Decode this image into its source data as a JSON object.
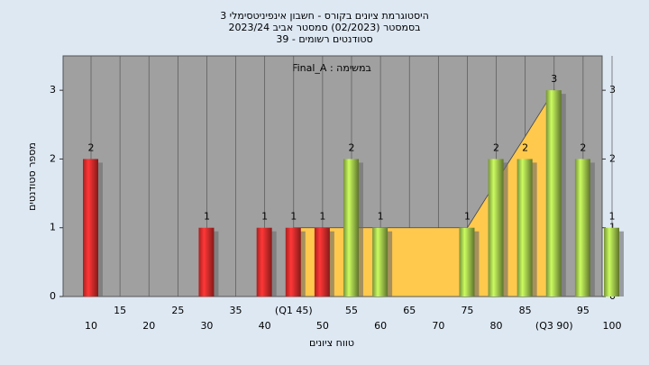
{
  "chart_data": {
    "type": "bar",
    "title": [
      "היסטוגרמת ציונים בקורס - חשבון אינפיניטסימלי 3",
      "בסמסטר  (02/2023)  סמסטר אביב 2023/24",
      "סטודנטים רשומים - 39"
    ],
    "annotation": "במשימה : Final_A",
    "x_label": "טווח ציונים",
    "y_label": "מספר סטודנטים",
    "categories": [
      "10",
      "15",
      "20",
      "25",
      "30",
      "35",
      "40",
      "(Q1 45)",
      "50",
      "55",
      "60",
      "65",
      "70",
      "75",
      "80",
      "85",
      "(Q3 90)",
      "95",
      "100"
    ],
    "values": [
      2,
      0,
      0,
      0,
      1,
      0,
      1,
      1,
      1,
      2,
      1,
      0,
      0,
      1,
      2,
      2,
      3,
      2,
      1
    ],
    "colors": [
      "#e02a2a",
      "#e02a2a",
      "#e02a2a",
      "#e02a2a",
      "#e02a2a",
      "#e02a2a",
      "#e02a2a",
      "#e02a2a",
      "#e02a2a",
      "#9cc24a",
      "#9cc24a",
      "#9cc24a",
      "#9cc24a",
      "#9cc24a",
      "#9cc24a",
      "#9cc24a",
      "#9cc24a",
      "#9cc24a",
      "#9cc24a"
    ],
    "area": {
      "color": "#ffc94d",
      "values": [
        null,
        null,
        null,
        null,
        null,
        null,
        null,
        1,
        1,
        1,
        1,
        1,
        1,
        1,
        1.67,
        2.33,
        3,
        null,
        null
      ]
    },
    "ylim": [
      0,
      3.5
    ],
    "yticks": [
      0,
      1,
      2,
      3
    ],
    "grid": true,
    "plot_color": "#a0a0a0"
  }
}
